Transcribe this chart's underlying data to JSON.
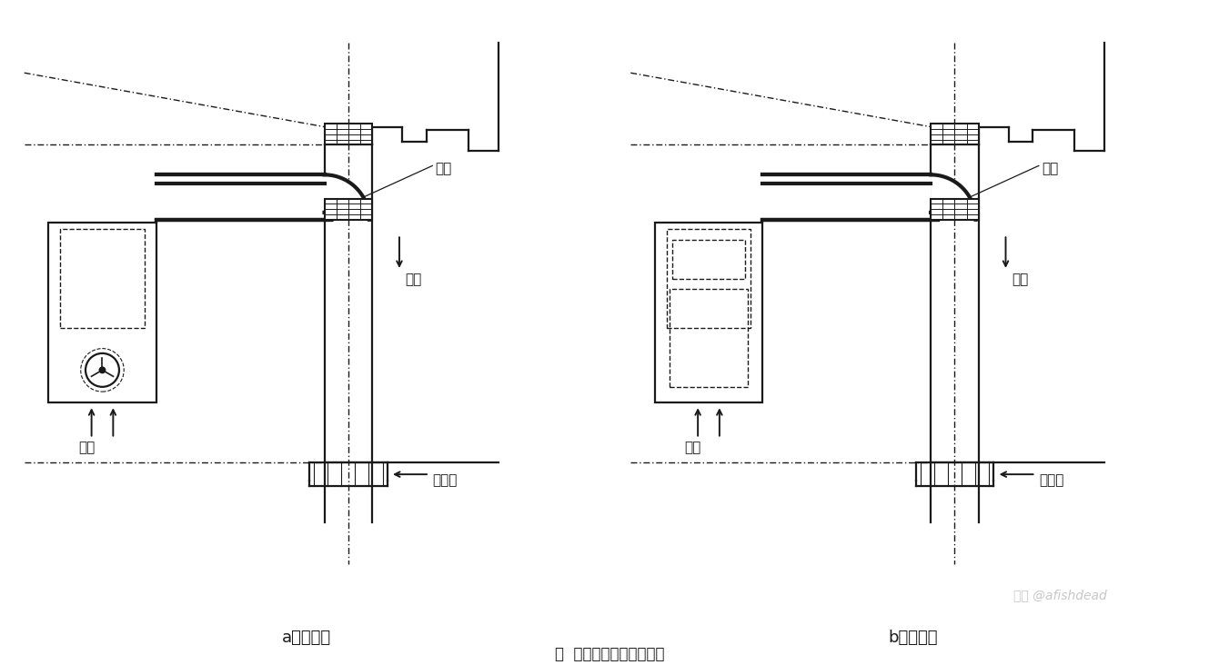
{
  "bg_color": "#ffffff",
  "line_color": "#1a1a1a",
  "label_a": "a）鼓风式",
  "label_b": "b）引风式",
  "bottom_caption": "图  鼓风式和引风式热水器",
  "label_wantou": "弯头",
  "label_yanqi": "烟气",
  "label_kongqi": "空气",
  "label_jinqikou": "进气口",
  "watermark": "知乎 @afishdead",
  "fig_width": 13.4,
  "fig_height": 7.32
}
